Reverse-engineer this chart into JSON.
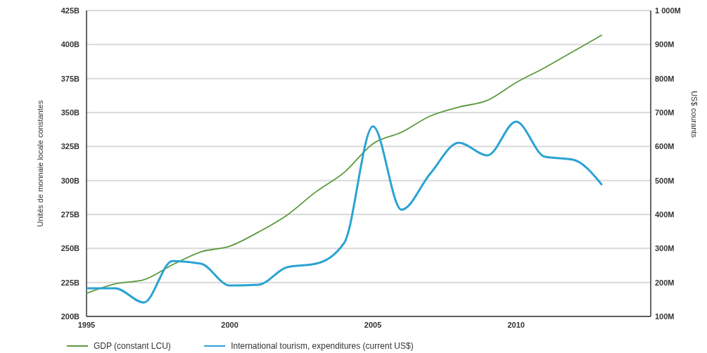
{
  "chart_data": {
    "type": "line",
    "ylabel": "Unités de monnaie locale constantes",
    "y2label": "US$ courants",
    "x": [
      1995,
      1996,
      1997,
      1998,
      1999,
      2000,
      2001,
      2002,
      2003,
      2004,
      2005,
      2006,
      2007,
      2008,
      2009,
      2010,
      2011,
      2012,
      2013
    ],
    "xlim": [
      1995,
      2014.7
    ],
    "xticks": [
      1995,
      2000,
      2005,
      2010
    ],
    "ylim": [
      200,
      425
    ],
    "yticks": [
      {
        "value": 200,
        "label": "200B"
      },
      {
        "value": 225,
        "label": "225B"
      },
      {
        "value": 250,
        "label": "250B"
      },
      {
        "value": 275,
        "label": "275B"
      },
      {
        "value": 300,
        "label": "300B"
      },
      {
        "value": 325,
        "label": "325B"
      },
      {
        "value": 350,
        "label": "350B"
      },
      {
        "value": 375,
        "label": "375B"
      },
      {
        "value": 400,
        "label": "400B"
      },
      {
        "value": 425,
        "label": "425B"
      }
    ],
    "y2lim": [
      100,
      1000
    ],
    "y2ticks": [
      {
        "value": 100,
        "label": "100M"
      },
      {
        "value": 200,
        "label": "200M"
      },
      {
        "value": 300,
        "label": "300M"
      },
      {
        "value": 400,
        "label": "400M"
      },
      {
        "value": 500,
        "label": "500M"
      },
      {
        "value": 600,
        "label": "600M"
      },
      {
        "value": 700,
        "label": "700M"
      },
      {
        "value": 800,
        "label": "800M"
      },
      {
        "value": 900,
        "label": "900M"
      },
      {
        "value": 1000,
        "label": "1 000M"
      }
    ],
    "grid": "y",
    "legend": "bottom",
    "series": [
      {
        "name": "GDP (constant LCU)",
        "color": "#5b9a3f",
        "values": [
          217,
          224,
          227,
          238,
          247.5,
          251.7,
          262,
          274.5,
          291.5,
          306,
          327,
          335.5,
          347.4,
          354,
          359,
          372,
          383,
          395,
          407
        ]
      },
      {
        "name": "International tourism, expenditures (current US$)",
        "color": "#2aa3d2",
        "axis": "y2",
        "values": [
          183,
          183,
          141,
          263,
          255,
          191,
          193,
          245,
          255,
          317,
          659,
          414,
          520,
          611,
          574,
          673,
          570,
          561,
          487
        ]
      }
    ]
  }
}
